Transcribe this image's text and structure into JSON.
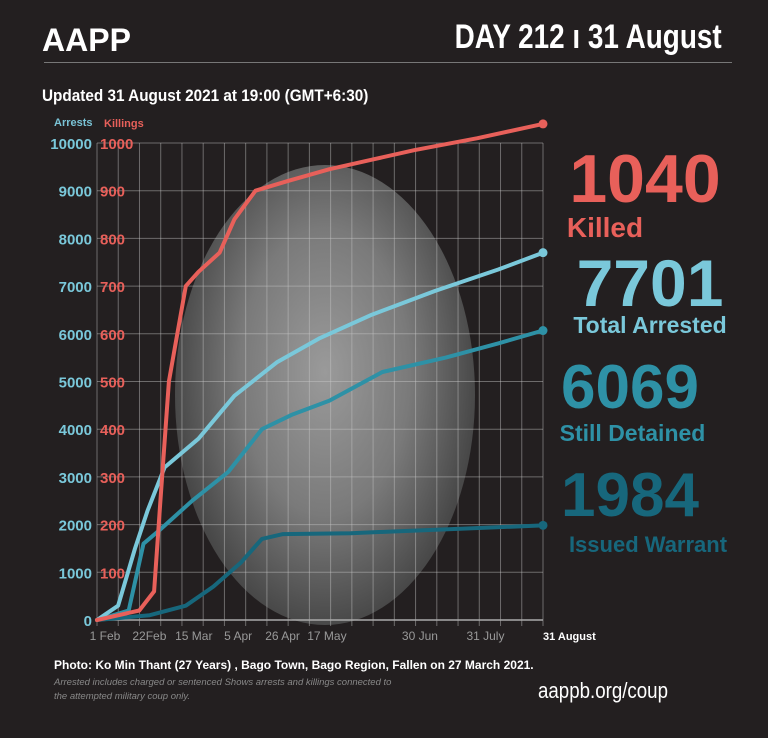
{
  "header": {
    "brand": "AAPP",
    "day": "DAY 212 ı 31 August",
    "updated": "Updated 31 August 2021 at 19:00 (GMT+6:30)"
  },
  "stats": {
    "killed": {
      "value": "1040",
      "label": "Killed",
      "color": "#e8605a"
    },
    "arrested": {
      "value": "7701",
      "label": "Total Arrested",
      "color": "#7ac8da"
    },
    "detained": {
      "value": "6069",
      "label": "Still Detained",
      "color": "#2e91a6"
    },
    "warrant": {
      "value": "1984",
      "label": "Issued Warrant",
      "color": "#17677c"
    }
  },
  "footer": {
    "photo_caption": "Photo:   Ko Min Thant (27 Years) , Bago Town, Bago Region, Fallen on 27 March 2021.",
    "note": "Arrested includes charged or sentenced Shows arrests and killings connected to the attempted military coup only.",
    "url": "aappb.org/coup"
  },
  "chart_data": {
    "type": "line",
    "legend": {
      "arrests_axis": "Arrests",
      "killings_axis": "Killings"
    },
    "y_left_ticks": [
      "10000",
      "9000",
      "8000",
      "7000",
      "6000",
      "5000",
      "4000",
      "3000",
      "2000",
      "1000",
      "0"
    ],
    "y_right_ticks": [
      "1000",
      "900",
      "800",
      "700",
      "600",
      "500",
      "400",
      "300",
      "200",
      "100"
    ],
    "ylim_arrests": [
      0,
      10000
    ],
    "ylim_killings": [
      0,
      1000
    ],
    "xlim_days": [
      0,
      211
    ],
    "x_ticks": [
      {
        "day": 0,
        "label": "1 Feb"
      },
      {
        "day": 21,
        "label": "22Feb"
      },
      {
        "day": 42,
        "label": "15 Mar"
      },
      {
        "day": 63,
        "label": "5 Apr"
      },
      {
        "day": 84,
        "label": "26 Apr"
      },
      {
        "day": 105,
        "label": "17 May"
      },
      {
        "day": 149,
        "label": "30 Jun"
      },
      {
        "day": 180,
        "label": "31 July"
      },
      {
        "day": 211,
        "label": "31 August"
      }
    ],
    "series": [
      {
        "name": "Killed",
        "axis": "killings",
        "color": "#e8605a",
        "points": [
          [
            0,
            0
          ],
          [
            20,
            20
          ],
          [
            27,
            60
          ],
          [
            30,
            250
          ],
          [
            34,
            500
          ],
          [
            38,
            600
          ],
          [
            42,
            700
          ],
          [
            48,
            730
          ],
          [
            58,
            770
          ],
          [
            65,
            840
          ],
          [
            75,
            900
          ],
          [
            90,
            920
          ],
          [
            110,
            945
          ],
          [
            130,
            965
          ],
          [
            150,
            985
          ],
          [
            180,
            1010
          ],
          [
            211,
            1040
          ]
        ]
      },
      {
        "name": "Total Arrested",
        "axis": "arrests",
        "color": "#7ac8da",
        "points": [
          [
            0,
            0
          ],
          [
            10,
            300
          ],
          [
            18,
            1500
          ],
          [
            24,
            2300
          ],
          [
            32,
            3200
          ],
          [
            48,
            3800
          ],
          [
            65,
            4700
          ],
          [
            85,
            5400
          ],
          [
            105,
            5900
          ],
          [
            130,
            6400
          ],
          [
            160,
            6900
          ],
          [
            190,
            7350
          ],
          [
            211,
            7701
          ]
        ]
      },
      {
        "name": "Still Detained",
        "axis": "arrests",
        "color": "#2e91a6",
        "points": [
          [
            0,
            0
          ],
          [
            15,
            200
          ],
          [
            22,
            1600
          ],
          [
            30,
            1900
          ],
          [
            45,
            2500
          ],
          [
            62,
            3100
          ],
          [
            78,
            4000
          ],
          [
            92,
            4300
          ],
          [
            110,
            4600
          ],
          [
            135,
            5200
          ],
          [
            165,
            5500
          ],
          [
            190,
            5800
          ],
          [
            211,
            6069
          ]
        ]
      },
      {
        "name": "Issued Warrant",
        "axis": "arrests",
        "color": "#17677c",
        "points": [
          [
            0,
            0
          ],
          [
            25,
            100
          ],
          [
            42,
            300
          ],
          [
            55,
            700
          ],
          [
            68,
            1200
          ],
          [
            78,
            1700
          ],
          [
            88,
            1800
          ],
          [
            120,
            1820
          ],
          [
            211,
            1984
          ]
        ]
      }
    ]
  }
}
